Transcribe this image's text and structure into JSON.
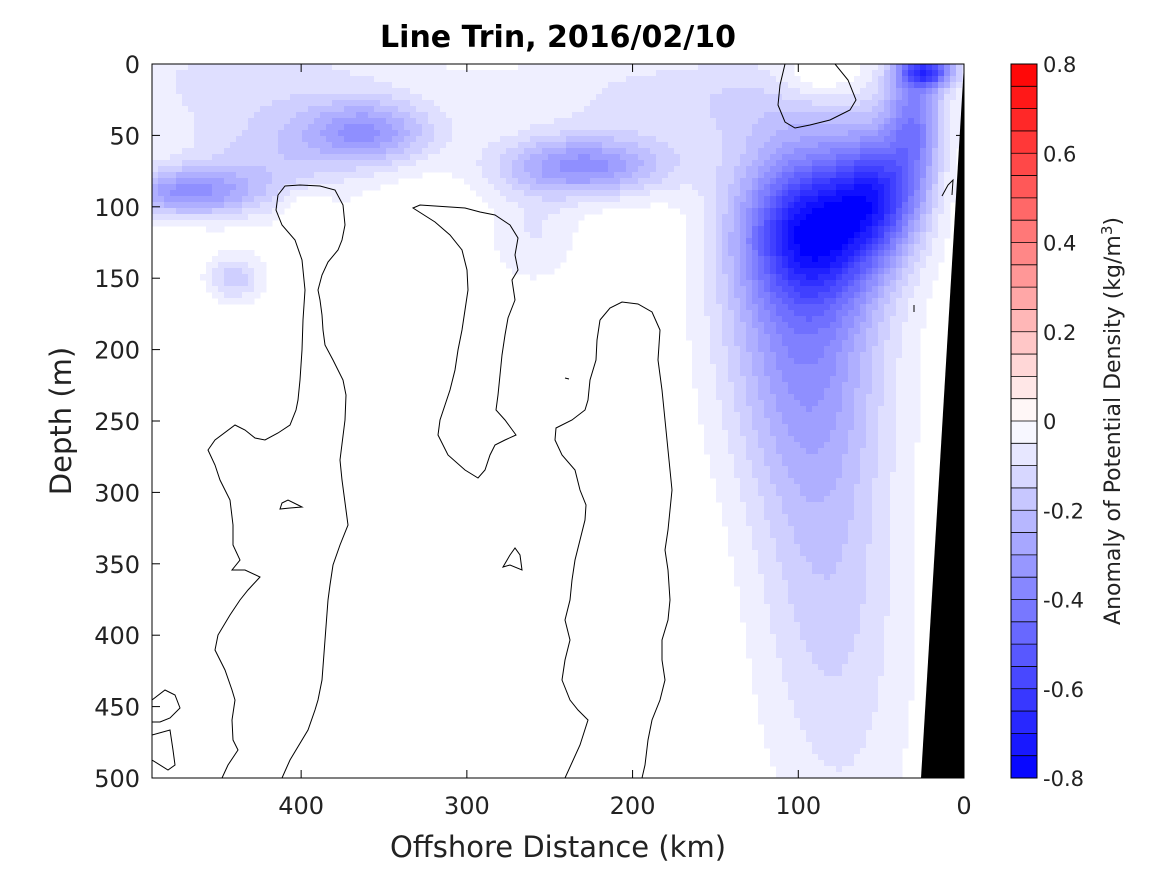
{
  "chart_data": {
    "type": "heatmap",
    "title": "Line Trin, 2016/02/10",
    "xlabel": "Offshore Distance (km)",
    "ylabel": "Depth (m)",
    "xlim": [
      490,
      0
    ],
    "ylim": [
      0,
      500
    ],
    "x_ticks": [
      400,
      300,
      200,
      100,
      0
    ],
    "y_ticks": [
      0,
      50,
      100,
      150,
      200,
      250,
      300,
      350,
      400,
      450,
      500
    ],
    "colorbar": {
      "label_main": "Anomaly of Potential Density (kg/m",
      "label_sup": "3",
      "label_end": ")",
      "min": -0.8,
      "max": 0.8,
      "step": 0.05,
      "ticks": [
        0.8,
        0.6,
        0.4,
        0.2,
        0,
        -0.2,
        -0.4,
        -0.6,
        -0.8
      ],
      "colormap": [
        "#0000ff",
        "#ffffff",
        "#ff0000"
      ]
    },
    "land_color": "#000000",
    "features": [
      {
        "kind": "anomaly",
        "x": 430,
        "y": 10,
        "sx": 70,
        "sy": 28,
        "value": -0.12
      },
      {
        "kind": "anomaly",
        "x": 360,
        "y": 48,
        "sx": 28,
        "sy": 16,
        "value": -0.3
      },
      {
        "kind": "anomaly",
        "x": 470,
        "y": 90,
        "sx": 30,
        "sy": 12,
        "value": -0.32
      },
      {
        "kind": "anomaly",
        "x": 420,
        "y": 70,
        "sx": 40,
        "sy": 25,
        "value": -0.15
      },
      {
        "kind": "anomaly",
        "x": 440,
        "y": 150,
        "sx": 12,
        "sy": 12,
        "value": -0.18
      },
      {
        "kind": "anomaly",
        "x": 230,
        "y": 72,
        "sx": 36,
        "sy": 15,
        "value": -0.35
      },
      {
        "kind": "anomaly",
        "x": 260,
        "y": 120,
        "sx": 20,
        "sy": 25,
        "value": -0.1
      },
      {
        "kind": "anomaly",
        "x": 155,
        "y": 25,
        "sx": 90,
        "sy": 28,
        "value": -0.13
      },
      {
        "kind": "anomaly",
        "x": 88,
        "y": 115,
        "sx": 30,
        "sy": 35,
        "value": -0.55
      },
      {
        "kind": "anomaly",
        "x": 52,
        "y": 90,
        "sx": 18,
        "sy": 28,
        "value": -0.42
      },
      {
        "kind": "anomaly",
        "x": 100,
        "y": 170,
        "sx": 34,
        "sy": 80,
        "value": -0.3
      },
      {
        "kind": "anomaly",
        "x": 90,
        "y": 300,
        "sx": 30,
        "sy": 130,
        "value": -0.15
      },
      {
        "kind": "anomaly",
        "x": 65,
        "y": 420,
        "sx": 30,
        "sy": 130,
        "value": -0.07
      },
      {
        "kind": "anomaly",
        "x": 22,
        "y": 5,
        "sx": 12,
        "sy": 8,
        "value": -0.5
      },
      {
        "kind": "anomaly",
        "x": 30,
        "y": 40,
        "sx": 12,
        "sy": 35,
        "value": -0.35
      },
      {
        "kind": "anomaly",
        "x": 88,
        "y": 10,
        "sx": 20,
        "sy": 14,
        "value": 0.12
      },
      {
        "kind": "anomaly",
        "x": 397,
        "y": 100,
        "sx": 9,
        "sy": 9,
        "value": 0.1
      }
    ]
  }
}
